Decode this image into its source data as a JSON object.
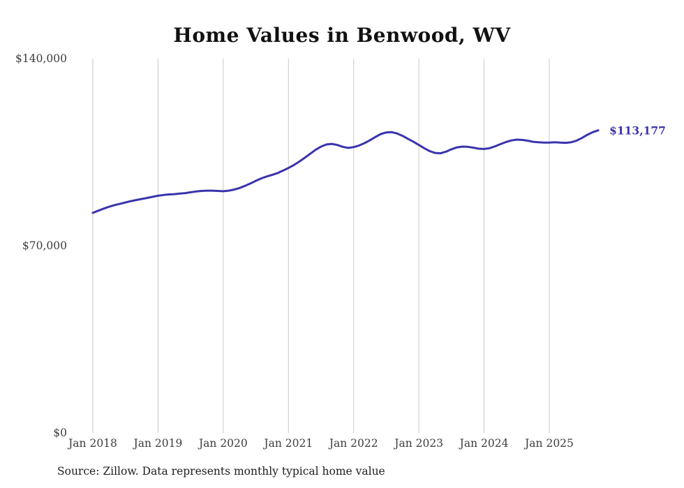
{
  "page": {
    "title": "Home Values in Benwood, WV",
    "source_note": "Source: Zillow. Data represents monthly typical home value"
  },
  "colors": {
    "line": "#3a34ad",
    "grid": "#c9c9c9",
    "axis_text": "#3c3c3c",
    "title_text": "#111111"
  },
  "end_label": "$113,177",
  "chart_data": {
    "type": "line",
    "title": "Home Values in Benwood, WV",
    "xlabel": "",
    "ylabel": "",
    "ylim": [
      0,
      140000
    ],
    "grid": "vertical-yearly",
    "legend_position": "none",
    "y_ticks": [
      {
        "label": "$0",
        "value": 0
      },
      {
        "label": "$70,000",
        "value": 70000
      },
      {
        "label": "$140,000",
        "value": 140000
      }
    ],
    "x_tick_labels": [
      "Jan 2018",
      "Jan 2019",
      "Jan 2020",
      "Jan 2021",
      "Jan 2022",
      "Jan 2023",
      "Jan 2024",
      "Jan 2025"
    ],
    "final_value": 113177,
    "final_value_label": "$113,177",
    "series": [
      {
        "name": "Monthly typical home value",
        "start_month": "2018-01",
        "end_month": "2025-10",
        "values": [
          82300,
          83100,
          83900,
          84600,
          85200,
          85700,
          86200,
          86700,
          87100,
          87500,
          87900,
          88300,
          88700,
          89000,
          89200,
          89300,
          89500,
          89700,
          90000,
          90300,
          90500,
          90600,
          90600,
          90500,
          90400,
          90600,
          91000,
          91600,
          92400,
          93300,
          94300,
          95200,
          95900,
          96500,
          97200,
          98100,
          99100,
          100200,
          101500,
          102900,
          104400,
          105900,
          107100,
          107900,
          108100,
          107700,
          107000,
          106600,
          106900,
          107500,
          108400,
          109500,
          110700,
          111800,
          112400,
          112500,
          112000,
          111100,
          110000,
          108900,
          107700,
          106500,
          105400,
          104700,
          104600,
          105200,
          106100,
          106800,
          107100,
          107000,
          106700,
          106300,
          106200,
          106500,
          107200,
          108000,
          108800,
          109400,
          109700,
          109600,
          109300,
          108900,
          108700,
          108600,
          108600,
          108700,
          108600,
          108500,
          108700,
          109300,
          110300,
          111500,
          112500,
          113177
        ]
      }
    ]
  }
}
